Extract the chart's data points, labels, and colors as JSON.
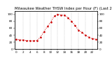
{
  "title": "Milwaukee Weather THSW Index per Hour (F) (Last 24 Hours)",
  "hours": [
    0,
    1,
    2,
    3,
    4,
    5,
    6,
    7,
    8,
    9,
    10,
    11,
    12,
    13,
    14,
    15,
    16,
    17,
    18,
    19,
    20,
    21,
    22,
    23
  ],
  "values": [
    28,
    27,
    26,
    25,
    24,
    24,
    25,
    35,
    50,
    65,
    78,
    95,
    100,
    98,
    97,
    90,
    80,
    68,
    55,
    48,
    40,
    35,
    30,
    29
  ],
  "ylim": [
    0,
    110
  ],
  "yticks": [
    0,
    20,
    40,
    60,
    80,
    100
  ],
  "background_color": "#ffffff",
  "line_color": "#cc0000",
  "grid_color": "#aaaaaa",
  "title_color": "#000000",
  "title_fontsize": 3.8,
  "tick_fontsize": 3.0
}
